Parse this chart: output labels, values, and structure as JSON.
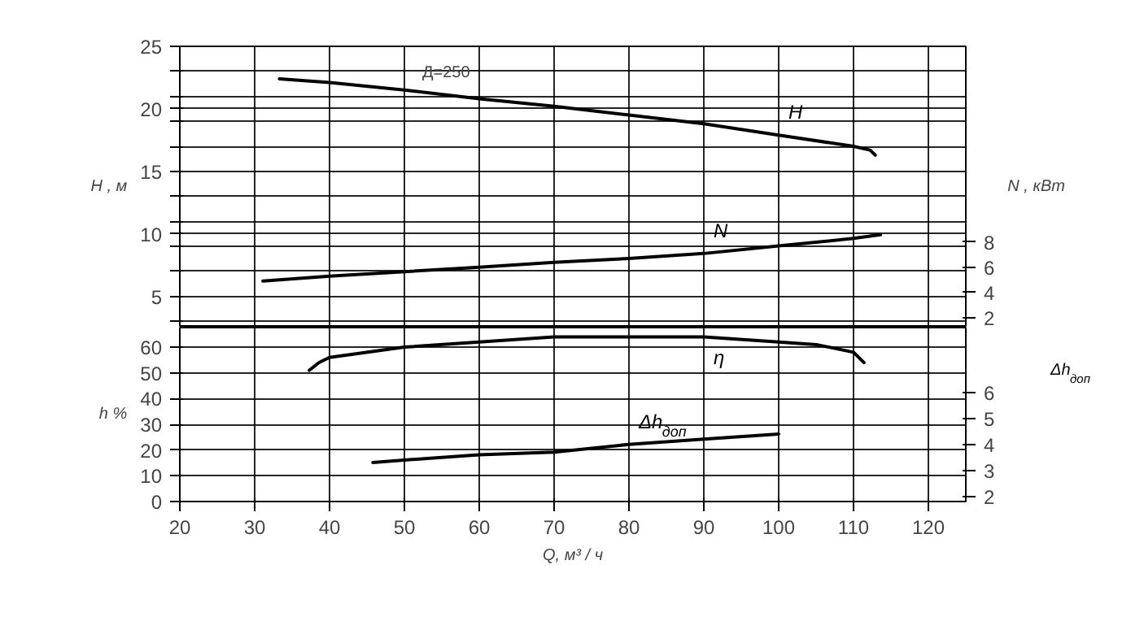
{
  "chart_data": [
    {
      "type": "line",
      "ylabel": "H , м",
      "y2label": "N , кВт",
      "tick_labels": "y",
      "xlim": [
        20,
        125
      ],
      "xticks": [
        20,
        30,
        40,
        50,
        60,
        70,
        80,
        90,
        100,
        110,
        120
      ],
      "ylim": [
        2.5,
        25
      ],
      "yticks": [
        25,
        {
          "value": 23,
          "label": null
        },
        {
          "value": 21,
          "label": null
        },
        20,
        {
          "value": 19,
          "label": null
        },
        {
          "value": 17,
          "label": null
        },
        15,
        {
          "value": 13,
          "label": null
        },
        {
          "value": 11,
          "label": null
        },
        10,
        {
          "value": 9,
          "label": null
        },
        {
          "value": 7,
          "label": null
        },
        5,
        {
          "value": 3,
          "label": null
        }
      ],
      "y2lim": [
        1.2,
        23.6
      ],
      "y2ticks": [
        2,
        4,
        6,
        8
      ],
      "grid": true,
      "marker": "none",
      "line_style": "solid",
      "annotations": [
        {
          "text": "Д=250",
          "x": 55,
          "y": 21.1
        }
      ],
      "series": [
        {
          "name": "H",
          "color": "#000000",
          "x": [
            33.3,
            40,
            50,
            60,
            70,
            80,
            90,
            100,
            110,
            112.2,
            112.9
          ],
          "values": [
            22.4,
            22.1,
            21.5,
            20.8,
            20.2,
            19.5,
            18.8,
            17.9,
            17.0,
            16.7,
            16.3
          ]
        },
        {
          "name": "N",
          "color": "#000000",
          "axis": "y2",
          "x": [
            31.1,
            40,
            60,
            70,
            80,
            90,
            100,
            110,
            113.6
          ],
          "values": [
            4.9,
            5.3,
            6.0,
            6.4,
            6.7,
            7.1,
            7.7,
            8.3,
            8.6
          ]
        }
      ]
    },
    {
      "type": "line",
      "xlabel": "Q, м³ / ч",
      "ylabel": "h %",
      "y2label": "Δh$_{доп}$",
      "xlim": [
        20,
        125
      ],
      "xticks": [
        20,
        30,
        40,
        50,
        60,
        70,
        80,
        90,
        100,
        110,
        120
      ],
      "ylim": [
        0,
        67.6
      ],
      "yticks": [
        0,
        10,
        20,
        30,
        40,
        50,
        60
      ],
      "y2lim": [
        1.8,
        8.5
      ],
      "y2ticks": [
        2,
        3,
        4,
        5,
        6
      ],
      "grid": true,
      "marker": "none",
      "line_style": "solid",
      "series": [
        {
          "name": "η",
          "color": "#000000",
          "x": [
            37.3,
            38.6,
            40,
            50,
            60,
            70,
            80,
            90,
            100,
            105,
            110,
            111.4
          ],
          "values": [
            51,
            54,
            56,
            60,
            62,
            64,
            64,
            64,
            62,
            61,
            58,
            54
          ]
        },
        {
          "name": "Δh$_{доп}$",
          "color": "#000000",
          "axis": "y2",
          "x": [
            45.8,
            50,
            60,
            70,
            80,
            90,
            100
          ],
          "values": [
            3.3,
            3.4,
            3.6,
            3.7,
            4.0,
            4.2,
            4.4
          ]
        }
      ]
    }
  ]
}
